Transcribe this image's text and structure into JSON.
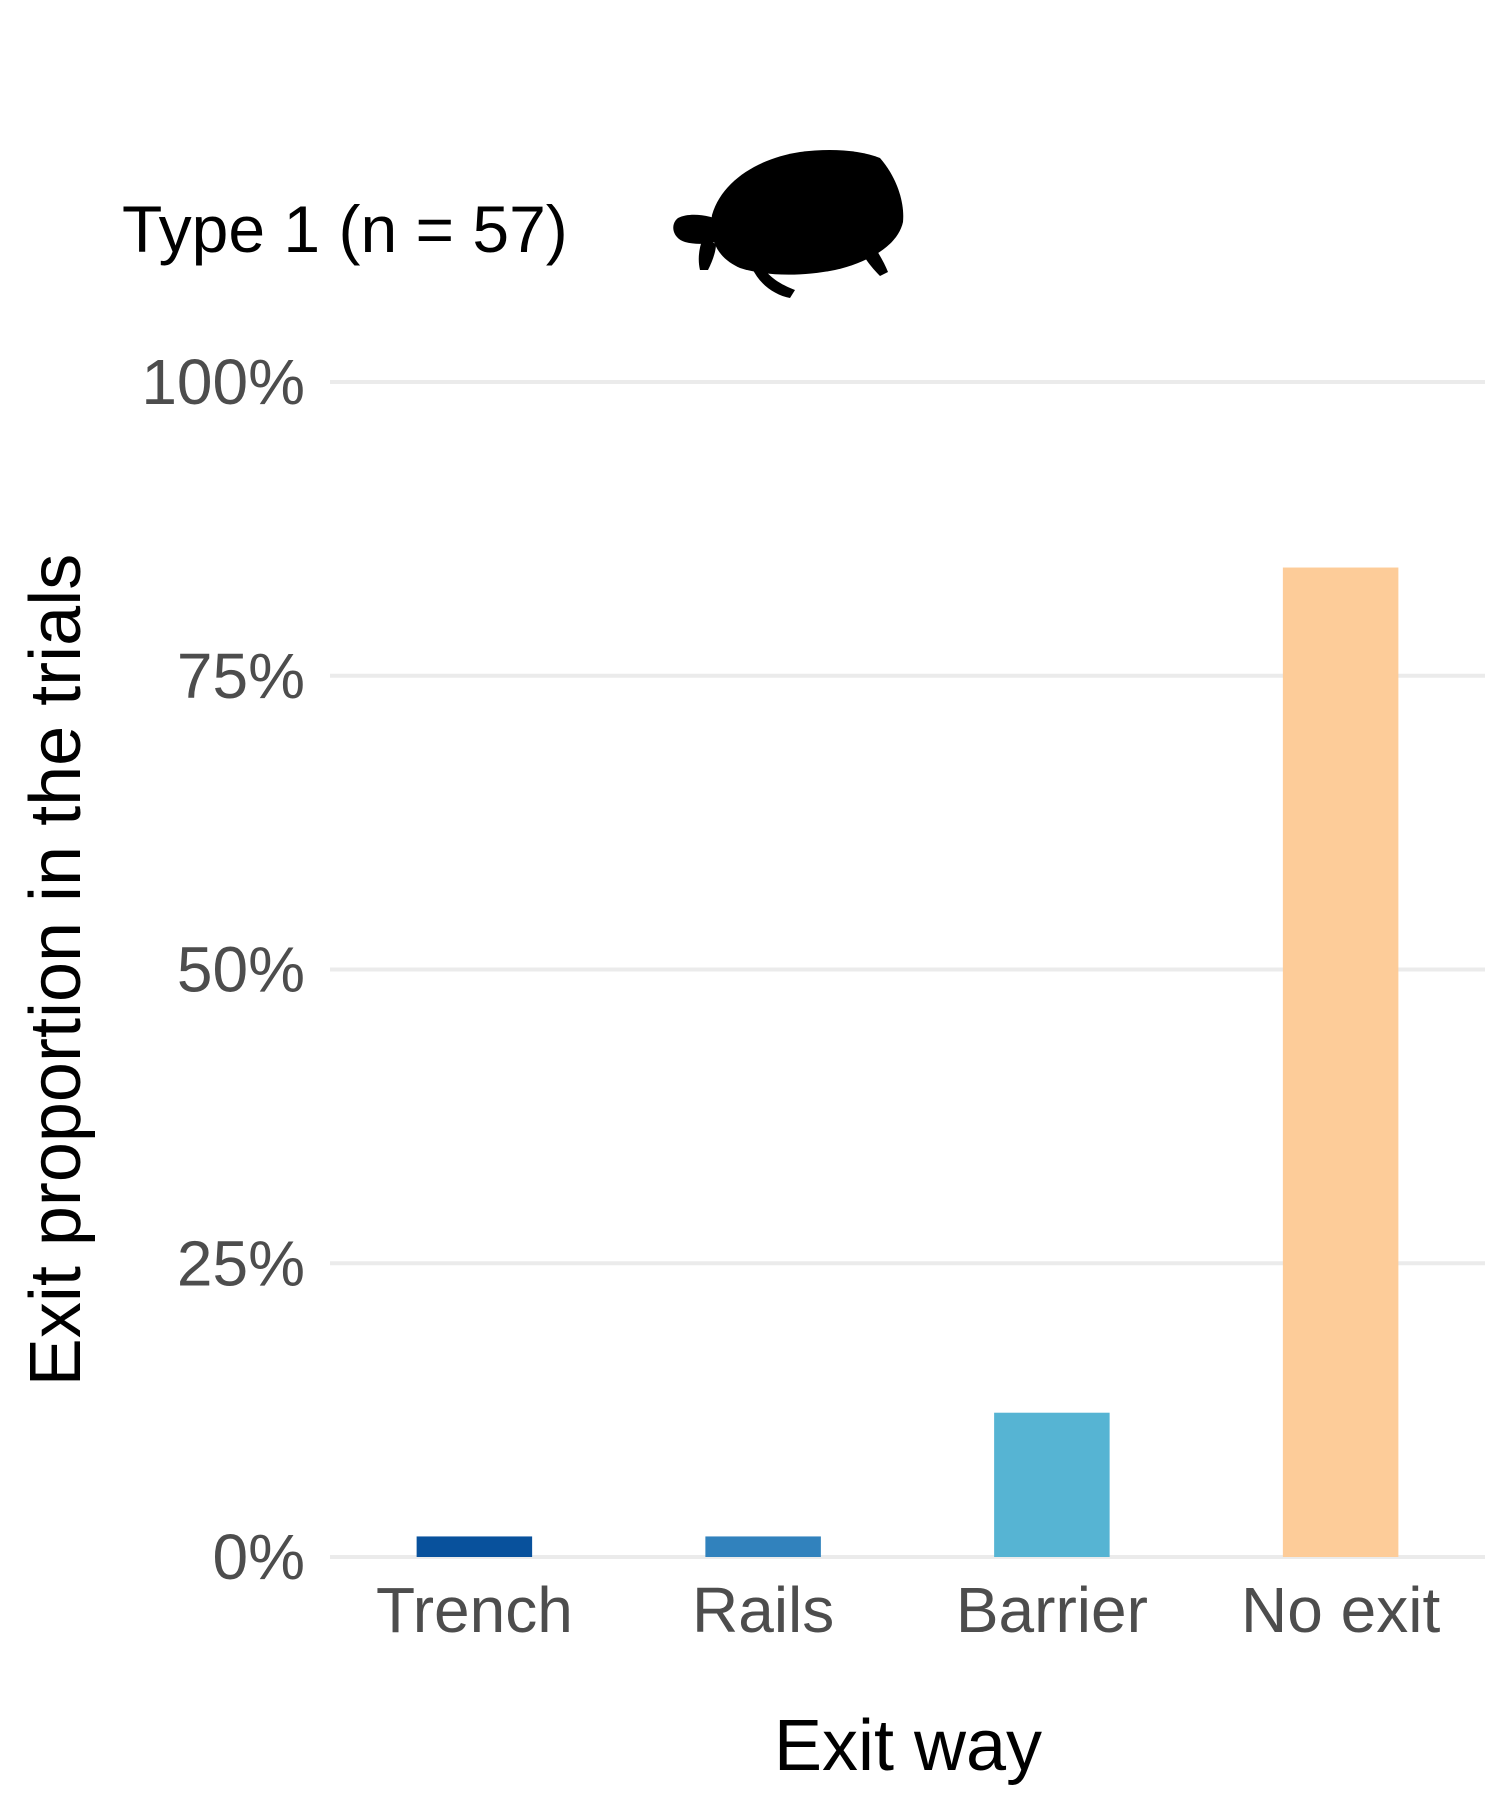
{
  "chart_data": {
    "type": "bar",
    "title": "Type 1 (n = 57)",
    "xlabel": "Exit way",
    "ylabel": "Exit proportion in the trials",
    "categories": [
      "Trench",
      "Rails",
      "Barrier",
      "No exit"
    ],
    "values": [
      0.0175,
      0.0175,
      0.1228,
      0.8421
    ],
    "colors": [
      "#08519c",
      "#3182bd",
      "#56b4d3",
      "#fdcc99"
    ],
    "ylim": [
      0,
      1
    ],
    "yticks": [
      0,
      0.25,
      0.5,
      0.75,
      1
    ],
    "ytick_labels": [
      "0%",
      "25%",
      "50%",
      "75%",
      "100%"
    ],
    "grid": "horizontal major only",
    "icon": "tortoise-silhouette-icon"
  }
}
